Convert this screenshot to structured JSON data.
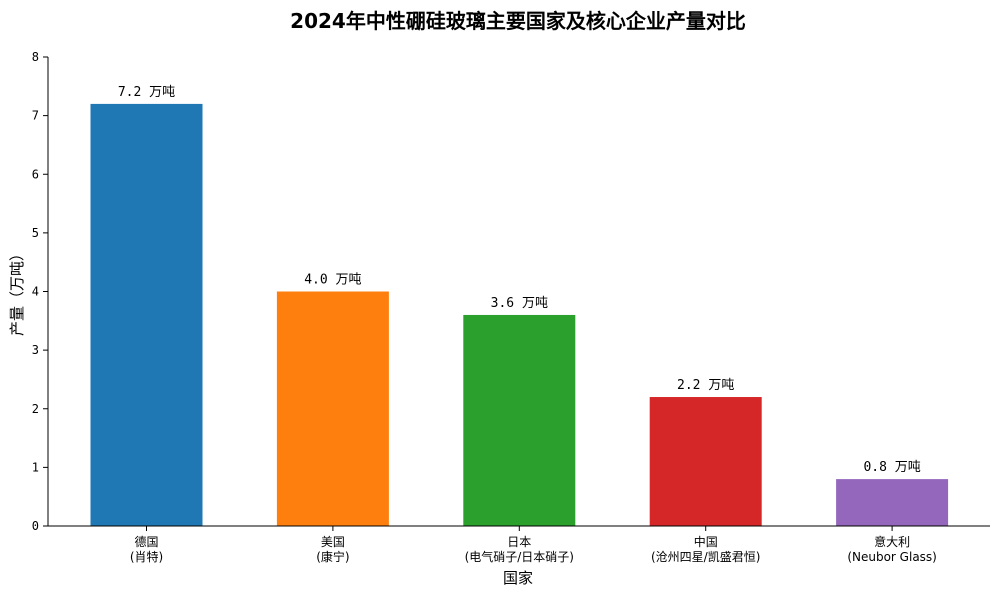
{
  "chart_data": {
    "type": "bar",
    "title": "2024年中性硼硅玻璃主要国家及核心企业产量对比",
    "xlabel": "国家",
    "ylabel": "产量（万吨）",
    "ylim": [
      0,
      8
    ],
    "yticks": [
      0,
      1,
      2,
      3,
      4,
      5,
      6,
      7,
      8
    ],
    "grid": false,
    "categories": [
      {
        "country": "德国",
        "company": "(肖特)"
      },
      {
        "country": "美国",
        "company": "(康宁)"
      },
      {
        "country": "日本",
        "company": "(电气硝子/日本硝子)"
      },
      {
        "country": "中国",
        "company": "(沧州四星/凯盛君恒)"
      },
      {
        "country": "意大利",
        "company": "(Neubor Glass)"
      }
    ],
    "values": [
      7.2,
      4.0,
      3.6,
      2.2,
      0.8
    ],
    "data_labels": [
      "7.2 万吨",
      "4.0 万吨",
      "3.6 万吨",
      "2.2 万吨",
      "0.8 万吨"
    ],
    "colors": [
      "#1f77b4",
      "#ff7f0e",
      "#2ca02c",
      "#d62728",
      "#9467bd"
    ]
  }
}
